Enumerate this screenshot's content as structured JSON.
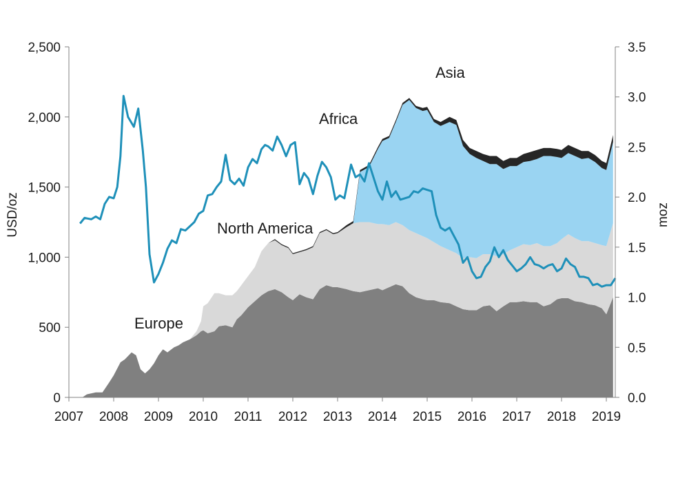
{
  "chart_data": {
    "type": "area",
    "title": "",
    "xlabel": "",
    "ylabel": "USD/oz",
    "y2label": "moz",
    "xlim": [
      2007.0,
      2019.2
    ],
    "ylim": [
      0,
      2500
    ],
    "y2lim": [
      0,
      3.5
    ],
    "x_ticks": [
      "2007",
      "2008",
      "2009",
      "2010",
      "2011",
      "2012",
      "2013",
      "2014",
      "2015",
      "2016",
      "2017",
      "2018",
      "2019"
    ],
    "y_ticks": [
      "0",
      "500",
      "1,000",
      "1,500",
      "2,000",
      "2,500"
    ],
    "y2_ticks": [
      "0.0",
      "0.5",
      "1.0",
      "1.5",
      "2.0",
      "2.5",
      "3.0",
      "3.5"
    ],
    "grid": false,
    "colors": {
      "europe": "#808080",
      "north_america": "#d9d9d9",
      "africa": "#262626",
      "asia": "#9ad4f2",
      "price": "#1e90b9"
    },
    "annotations": {
      "europe": "Europe",
      "north_america": "North America",
      "africa": "Africa",
      "asia": "Asia"
    },
    "stack_x": [
      2007.0,
      2007.3,
      2007.4,
      2007.6,
      2007.75,
      2007.9,
      2008.0,
      2008.15,
      2008.25,
      2008.4,
      2008.5,
      2008.6,
      2008.7,
      2008.8,
      2008.9,
      2009.0,
      2009.1,
      2009.2,
      2009.35,
      2009.45,
      2009.55,
      2009.7,
      2009.85,
      2009.95,
      2010.0,
      2010.1,
      2010.25,
      2010.35,
      2010.5,
      2010.65,
      2010.75,
      2010.85,
      2011.0,
      2011.15,
      2011.3,
      2011.45,
      2011.6,
      2011.75,
      2011.9,
      2012.0,
      2012.15,
      2012.3,
      2012.45,
      2012.6,
      2012.75,
      2012.9,
      2013.0,
      2013.2,
      2013.35,
      2013.5,
      2013.7,
      2013.9,
      2014.0,
      2014.15,
      2014.3,
      2014.45,
      2014.6,
      2014.75,
      2014.9,
      2015.0,
      2015.15,
      2015.3,
      2015.5,
      2015.65,
      2015.8,
      2015.95,
      2016.1,
      2016.25,
      2016.4,
      2016.55,
      2016.7,
      2016.85,
      2017.0,
      2017.15,
      2017.3,
      2017.45,
      2017.6,
      2017.75,
      2017.9,
      2018.0,
      2018.15,
      2018.3,
      2018.45,
      2018.6,
      2018.75,
      2018.9,
      2019.0,
      2019.15
    ],
    "series": [
      {
        "name": "Europe",
        "values": [
          0,
          0,
          0.03,
          0.05,
          0.05,
          0.15,
          0.22,
          0.35,
          0.38,
          0.45,
          0.42,
          0.28,
          0.24,
          0.28,
          0.34,
          0.42,
          0.48,
          0.45,
          0.5,
          0.52,
          0.55,
          0.58,
          0.62,
          0.66,
          0.67,
          0.64,
          0.66,
          0.71,
          0.72,
          0.7,
          0.78,
          0.82,
          0.9,
          0.96,
          1.02,
          1.06,
          1.08,
          1.05,
          1.0,
          0.97,
          1.03,
          1.0,
          0.98,
          1.08,
          1.12,
          1.1,
          1.1,
          1.08,
          1.06,
          1.05,
          1.07,
          1.09,
          1.07,
          1.1,
          1.13,
          1.11,
          1.04,
          1.0,
          0.98,
          0.97,
          0.97,
          0.95,
          0.94,
          0.91,
          0.88,
          0.87,
          0.87,
          0.91,
          0.92,
          0.86,
          0.91,
          0.95,
          0.95,
          0.96,
          0.95,
          0.95,
          0.91,
          0.93,
          0.98,
          0.99,
          0.99,
          0.96,
          0.95,
          0.93,
          0.92,
          0.89,
          0.83,
          1.0
        ]
      },
      {
        "name": "North America",
        "values": [
          0,
          0,
          0,
          0,
          0,
          0,
          0,
          0,
          0,
          0,
          0,
          0,
          0,
          0,
          0,
          0,
          0,
          0,
          0,
          0,
          0,
          0,
          0.04,
          0.1,
          0.24,
          0.3,
          0.38,
          0.33,
          0.3,
          0.32,
          0.28,
          0.3,
          0.31,
          0.34,
          0.44,
          0.48,
          0.49,
          0.47,
          0.49,
          0.46,
          0.42,
          0.47,
          0.52,
          0.56,
          0.55,
          0.53,
          0.54,
          0.62,
          0.68,
          0.7,
          0.68,
          0.64,
          0.66,
          0.62,
          0.62,
          0.61,
          0.63,
          0.64,
          0.63,
          0.62,
          0.58,
          0.56,
          0.53,
          0.53,
          0.51,
          0.53,
          0.52,
          0.52,
          0.51,
          0.55,
          0.52,
          0.52,
          0.55,
          0.57,
          0.57,
          0.59,
          0.6,
          0.58,
          0.56,
          0.59,
          0.64,
          0.63,
          0.61,
          0.63,
          0.62,
          0.63,
          0.68,
          0.74
        ]
      },
      {
        "name": "Asia",
        "values": [
          0,
          0,
          0,
          0,
          0,
          0,
          0,
          0,
          0,
          0,
          0,
          0,
          0,
          0,
          0,
          0,
          0,
          0,
          0,
          0,
          0,
          0,
          0,
          0,
          0,
          0,
          0,
          0,
          0,
          0,
          0,
          0,
          0,
          0,
          0,
          0,
          0,
          0,
          0,
          0,
          0,
          0,
          0,
          0,
          0,
          0,
          0,
          0,
          0,
          0.5,
          0.55,
          0.75,
          0.83,
          0.87,
          1.0,
          1.2,
          1.3,
          1.25,
          1.25,
          1.28,
          1.2,
          1.2,
          1.28,
          1.28,
          1.12,
          1.03,
          1.0,
          0.93,
          0.9,
          0.92,
          0.85,
          0.84,
          0.81,
          0.82,
          0.84,
          0.84,
          0.9,
          0.9,
          0.86,
          0.81,
          0.81,
          0.82,
          0.82,
          0.83,
          0.81,
          0.77,
          0.76,
          0.81
        ]
      },
      {
        "name": "Africa",
        "values": [
          0,
          0,
          0,
          0,
          0,
          0,
          0,
          0,
          0,
          0,
          0,
          0,
          0,
          0,
          0,
          0,
          0,
          0,
          0,
          0,
          0,
          0,
          0,
          0,
          0,
          0,
          0,
          0,
          0,
          0,
          0,
          0,
          0,
          0,
          0,
          0,
          0.01,
          0.01,
          0.01,
          0.01,
          0.01,
          0.01,
          0.01,
          0.01,
          0.01,
          0.01,
          0.01,
          0.02,
          0.02,
          0.02,
          0.02,
          0.02,
          0.02,
          0.02,
          0.02,
          0.02,
          0.02,
          0.02,
          0.03,
          0.03,
          0.03,
          0.04,
          0.05,
          0.05,
          0.06,
          0.06,
          0.07,
          0.07,
          0.08,
          0.08,
          0.08,
          0.08,
          0.08,
          0.08,
          0.09,
          0.09,
          0.08,
          0.08,
          0.08,
          0.08,
          0.08,
          0.08,
          0.08,
          0.07,
          0.07,
          0.07,
          0.07,
          0.07
        ]
      }
    ],
    "price_series": {
      "axis": "left",
      "x": [
        2007.25,
        2007.35,
        2007.5,
        2007.6,
        2007.7,
        2007.8,
        2007.9,
        2008.0,
        2008.08,
        2008.15,
        2008.22,
        2008.32,
        2008.45,
        2008.55,
        2008.65,
        2008.72,
        2008.8,
        2008.9,
        2009.0,
        2009.1,
        2009.2,
        2009.3,
        2009.4,
        2009.5,
        2009.6,
        2009.7,
        2009.8,
        2009.9,
        2010.0,
        2010.1,
        2010.2,
        2010.3,
        2010.4,
        2010.5,
        2010.6,
        2010.7,
        2010.8,
        2010.9,
        2011.0,
        2011.1,
        2011.2,
        2011.3,
        2011.38,
        2011.45,
        2011.55,
        2011.65,
        2011.75,
        2011.85,
        2011.95,
        2012.05,
        2012.15,
        2012.25,
        2012.35,
        2012.45,
        2012.55,
        2012.65,
        2012.75,
        2012.85,
        2012.95,
        2013.05,
        2013.15,
        2013.3,
        2013.4,
        2013.5,
        2013.6,
        2013.7,
        2013.8,
        2013.9,
        2014.0,
        2014.1,
        2014.2,
        2014.3,
        2014.4,
        2014.5,
        2014.6,
        2014.7,
        2014.8,
        2014.9,
        2015.0,
        2015.1,
        2015.2,
        2015.3,
        2015.4,
        2015.5,
        2015.6,
        2015.7,
        2015.8,
        2015.9,
        2016.0,
        2016.1,
        2016.2,
        2016.3,
        2016.4,
        2016.5,
        2016.6,
        2016.7,
        2016.8,
        2016.9,
        2017.0,
        2017.1,
        2017.2,
        2017.3,
        2017.4,
        2017.5,
        2017.6,
        2017.7,
        2017.8,
        2017.9,
        2018.0,
        2018.1,
        2018.2,
        2018.3,
        2018.4,
        2018.5,
        2018.6,
        2018.7,
        2018.8,
        2018.9,
        2019.0,
        2019.1,
        2019.2
      ],
      "values": [
        1240,
        1280,
        1270,
        1290,
        1270,
        1380,
        1430,
        1420,
        1500,
        1720,
        2150,
        2000,
        1930,
        2060,
        1760,
        1500,
        1020,
        820,
        880,
        960,
        1060,
        1120,
        1100,
        1200,
        1190,
        1220,
        1250,
        1310,
        1330,
        1440,
        1450,
        1500,
        1540,
        1730,
        1550,
        1520,
        1560,
        1510,
        1640,
        1700,
        1670,
        1770,
        1800,
        1790,
        1760,
        1860,
        1800,
        1720,
        1800,
        1820,
        1520,
        1600,
        1560,
        1450,
        1580,
        1680,
        1640,
        1570,
        1410,
        1440,
        1420,
        1660,
        1570,
        1590,
        1540,
        1670,
        1570,
        1470,
        1410,
        1540,
        1430,
        1470,
        1410,
        1420,
        1430,
        1470,
        1460,
        1490,
        1480,
        1470,
        1300,
        1210,
        1190,
        1210,
        1150,
        1090,
        960,
        1000,
        900,
        850,
        860,
        930,
        970,
        1070,
        1000,
        1050,
        980,
        940,
        900,
        920,
        950,
        1000,
        950,
        940,
        920,
        940,
        950,
        900,
        920,
        990,
        950,
        930,
        860,
        860,
        850,
        800,
        810,
        790,
        800,
        800,
        850
      ]
    }
  }
}
